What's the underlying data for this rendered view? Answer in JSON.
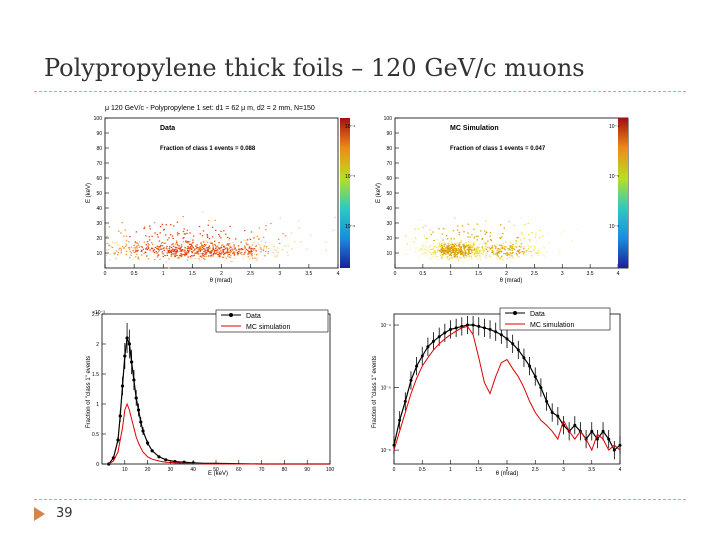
{
  "slide": {
    "title": "Polypropylene thick foils – 120 GeV/c muons",
    "page_number": "39"
  },
  "chart_data": [
    {
      "id": "data2d",
      "type": "heatmap",
      "title": "μ 120 GeV/c - Polypropylene 1 set: d1 = 62 μ m, d2 = 2 mm, N=150",
      "label": "Data",
      "fraction_text": "Fraction of class 1 events = 0.088",
      "xlabel": "θ (mrad)",
      "ylabel": "E (keV)",
      "xlim": [
        0,
        4
      ],
      "ylim": [
        0,
        100
      ],
      "xticks": [
        "0",
        "0.5",
        "1",
        "1.5",
        "2",
        "2.5",
        "3",
        "3.5",
        "4"
      ],
      "yticks": [
        "10",
        "20",
        "30",
        "40",
        "50",
        "60",
        "70",
        "80",
        "90",
        "100"
      ],
      "colorbar": [
        "10⁻⁴",
        "10⁻⁵",
        "10⁻⁶"
      ],
      "clusters": [
        {
          "x": 1.3,
          "y": 12,
          "sx": 0.75,
          "sy": 4,
          "n": 450
        },
        {
          "x": 2.1,
          "y": 12,
          "sx": 0.45,
          "sy": 4,
          "n": 150
        },
        {
          "x": 1.5,
          "y": 22,
          "sx": 1.0,
          "sy": 9,
          "n": 160
        }
      ]
    },
    {
      "id": "mc2d",
      "type": "heatmap",
      "label": "MC Simulation",
      "fraction_text": "Fraction of class 1 events = 0.047",
      "xlabel": "θ (mrad)",
      "ylabel": "E (keV)",
      "xlim": [
        0,
        4
      ],
      "ylim": [
        0,
        100
      ],
      "xticks": [
        "0",
        "0.5",
        "1",
        "1.5",
        "2",
        "2.5",
        "3",
        "3.5",
        "4"
      ],
      "yticks": [
        "10",
        "20",
        "30",
        "40",
        "50",
        "60",
        "70",
        "80",
        "90",
        "100"
      ],
      "colorbar": [
        "10⁻⁴",
        "10⁻⁵",
        "10⁻⁶"
      ],
      "clusters": [
        {
          "x": 1.1,
          "y": 12,
          "sx": 0.3,
          "sy": 4,
          "n": 450
        },
        {
          "x": 2.0,
          "y": 12,
          "sx": 0.35,
          "sy": 4,
          "n": 150
        },
        {
          "x": 1.4,
          "y": 22,
          "sx": 0.8,
          "sy": 8,
          "n": 120
        }
      ]
    },
    {
      "id": "energy",
      "type": "line",
      "scale_label": "×10⁻³",
      "xlabel": "E (keV)",
      "ylabel": "Fraction of \"class 1\" events",
      "xlim": [
        0,
        100
      ],
      "ylim": [
        0,
        2.5
      ],
      "xticks": [
        "10",
        "20",
        "30",
        "40",
        "50",
        "60",
        "70",
        "80",
        "90",
        "100"
      ],
      "yticks": [
        "0",
        "0.5",
        "1",
        "1.5",
        "2",
        "2.5"
      ],
      "legend": [
        "Data",
        "MC simulation"
      ],
      "series": [
        {
          "name": "Data",
          "x": [
            3,
            5,
            7,
            8,
            9,
            10,
            11,
            12,
            13,
            14,
            15,
            16,
            17,
            18,
            20,
            22,
            25,
            28,
            32,
            36,
            40,
            45,
            50,
            60,
            70,
            80,
            90,
            100
          ],
          "y": [
            0,
            0.1,
            0.4,
            0.8,
            1.3,
            1.8,
            2.1,
            2.0,
            1.7,
            1.4,
            1.1,
            0.9,
            0.7,
            0.55,
            0.35,
            0.22,
            0.12,
            0.07,
            0.04,
            0.03,
            0.02,
            0.01,
            0.01,
            0.005,
            0,
            0,
            0,
            0
          ]
        },
        {
          "name": "MC simulation",
          "x": [
            3,
            5,
            7,
            8,
            9,
            10,
            11,
            12,
            13,
            14,
            15,
            16,
            17,
            18,
            20,
            22,
            25,
            28,
            32,
            36,
            40,
            45,
            50,
            60,
            70,
            80,
            90,
            100
          ],
          "y": [
            0,
            0.05,
            0.2,
            0.4,
            0.6,
            0.9,
            1.0,
            0.9,
            0.75,
            0.6,
            0.45,
            0.35,
            0.27,
            0.2,
            0.12,
            0.08,
            0.05,
            0.03,
            0.02,
            0.01,
            0.01,
            0,
            0,
            0,
            0,
            0,
            0,
            0
          ]
        }
      ]
    },
    {
      "id": "angle",
      "type": "line",
      "xlabel": "θ (mrad)",
      "ylabel": "Fraction of \"class 1\" events",
      "xlim": [
        0,
        4
      ],
      "yscale": "log",
      "ylim": [
        6e-07,
        0.00015
      ],
      "xticks": [
        "0",
        "0.5",
        "1",
        "1.5",
        "2",
        "2.5",
        "3",
        "3.5",
        "4"
      ],
      "yticks": [
        "10⁻⁴",
        "10⁻⁵",
        "10⁻⁶"
      ],
      "legend": [
        "Data",
        "MC simulation"
      ],
      "series": [
        {
          "name": "Data",
          "x": [
            0,
            0.1,
            0.2,
            0.3,
            0.4,
            0.5,
            0.6,
            0.7,
            0.8,
            0.9,
            1.0,
            1.1,
            1.2,
            1.3,
            1.4,
            1.5,
            1.6,
            1.7,
            1.8,
            1.9,
            2.0,
            2.1,
            2.2,
            2.3,
            2.4,
            2.5,
            2.6,
            2.7,
            2.8,
            2.9,
            3.0,
            3.1,
            3.2,
            3.3,
            3.4,
            3.5,
            3.6,
            3.7,
            3.8,
            3.9,
            4.0
          ],
          "y": [
            1.2e-06,
            3e-06,
            6e-06,
            1.3e-05,
            2.2e-05,
            3.2e-05,
            4.5e-05,
            5.5e-05,
            6.5e-05,
            7.5e-05,
            8.5e-05,
            9e-05,
            9.5e-05,
            0.0001,
            0.0001,
            9.5e-05,
            9e-05,
            8.5e-05,
            7.8e-05,
            7e-05,
            6e-05,
            5e-05,
            4e-05,
            3e-05,
            2.2e-05,
            1.5e-05,
            1e-05,
            6e-06,
            4e-06,
            3.5e-06,
            2.5e-06,
            2e-06,
            2.5e-06,
            2e-06,
            1.5e-06,
            2e-06,
            1.5e-06,
            2e-06,
            1.5e-06,
            1e-06,
            1.2e-06
          ]
        },
        {
          "name": "MC simulation",
          "x": [
            0,
            0.1,
            0.2,
            0.3,
            0.4,
            0.5,
            0.6,
            0.7,
            0.8,
            0.9,
            1.0,
            1.1,
            1.2,
            1.3,
            1.4,
            1.5,
            1.6,
            1.7,
            1.8,
            1.9,
            2.0,
            2.1,
            2.2,
            2.3,
            2.4,
            2.5,
            2.6,
            2.7,
            2.8,
            2.9,
            3.0,
            3.1,
            3.2,
            3.3,
            3.4,
            3.5,
            3.6,
            3.7,
            3.8,
            3.9,
            4.0
          ],
          "y": [
            1e-06,
            2e-06,
            4e-06,
            8e-06,
            1.4e-05,
            2.2e-05,
            3e-05,
            4e-05,
            5e-05,
            6e-05,
            7e-05,
            8e-05,
            9e-05,
            9.5e-05,
            7e-05,
            3e-05,
            1.2e-05,
            8e-06,
            1.5e-05,
            2.5e-05,
            2.8e-05,
            2e-05,
            1.5e-05,
            1e-05,
            6e-06,
            4e-06,
            3e-06,
            2.5e-06,
            2e-06,
            1.5e-06,
            3e-06,
            2e-06,
            1.5e-06,
            2e-06,
            1.5e-06,
            1e-06,
            1.8e-06,
            1.5e-06,
            1e-06,
            1.2e-06,
            1e-06
          ]
        }
      ]
    }
  ]
}
